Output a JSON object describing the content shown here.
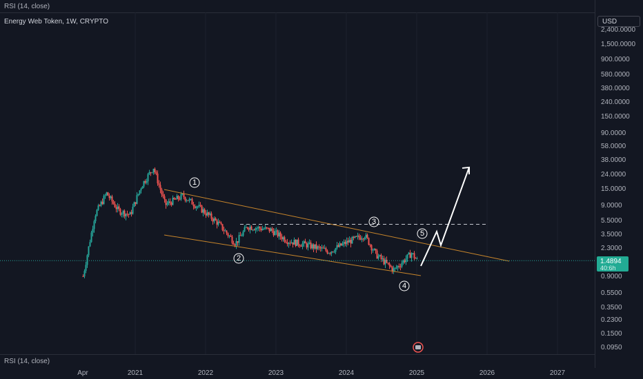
{
  "header": {
    "indicator_label": "RSI (14, close)",
    "symbol_title": "Energy Web Token, 1W, CRYPTO"
  },
  "price_axis": {
    "currency": "USD",
    "ticks": [
      "2,400.0000",
      "1,500.0000",
      "900.0000",
      "580.0000",
      "380.0000",
      "240.0000",
      "150.0000",
      "90.0000",
      "58.0000",
      "38.0000",
      "24.0000",
      "15.0000",
      "9.0000",
      "5.5000",
      "3.5000",
      "2.3000",
      "0.9000",
      "0.5500",
      "0.3500",
      "0.2300",
      "0.1500",
      "0.0950"
    ],
    "last_price": "1.4894",
    "countdown": "40:6h"
  },
  "time_axis": {
    "labels": [
      "Apr",
      "2021",
      "2022",
      "2023",
      "2024",
      "2025",
      "2026",
      "2027"
    ]
  },
  "rsi_pane": {
    "label": "RSI (14, close)"
  },
  "colors": {
    "up": "#26a69a",
    "down": "#ef5350",
    "trendline": "#c9862b",
    "projection": "#ffffff",
    "background": "#131722"
  },
  "chart_data": {
    "type": "candlestick",
    "title": "Energy Web Token, 1W, CRYPTO",
    "y_scale": "log",
    "ylim": [
      0.095,
      2400
    ],
    "price_path": [
      {
        "date": "2020-04",
        "price": 0.9
      },
      {
        "date": "2020-06",
        "price": 6.5
      },
      {
        "date": "2020-08",
        "price": 13
      },
      {
        "date": "2020-10",
        "price": 7.5
      },
      {
        "date": "2020-12",
        "price": 6.5
      },
      {
        "date": "2021-02",
        "price": 17
      },
      {
        "date": "2021-04",
        "price": 30
      },
      {
        "date": "2021-06",
        "price": 9
      },
      {
        "date": "2021-09",
        "price": 12
      },
      {
        "date": "2021-12",
        "price": 8
      },
      {
        "date": "2022-03",
        "price": 5
      },
      {
        "date": "2022-06",
        "price": 2.6
      },
      {
        "date": "2022-08",
        "price": 4.5
      },
      {
        "date": "2022-12",
        "price": 4
      },
      {
        "date": "2023-03",
        "price": 2.8
      },
      {
        "date": "2023-06",
        "price": 2.5
      },
      {
        "date": "2023-10",
        "price": 2.0
      },
      {
        "date": "2024-01",
        "price": 2.7
      },
      {
        "date": "2024-04",
        "price": 3.4
      },
      {
        "date": "2024-06",
        "price": 1.8
      },
      {
        "date": "2024-09",
        "price": 1.1
      },
      {
        "date": "2024-12",
        "price": 1.9
      },
      {
        "date": "2025-01",
        "price": 1.4894
      }
    ],
    "annotations": {
      "wave_labels": [
        "1",
        "2",
        "3",
        "4",
        "5"
      ],
      "resistance_level": 4.8,
      "projection_target": 30
    }
  }
}
